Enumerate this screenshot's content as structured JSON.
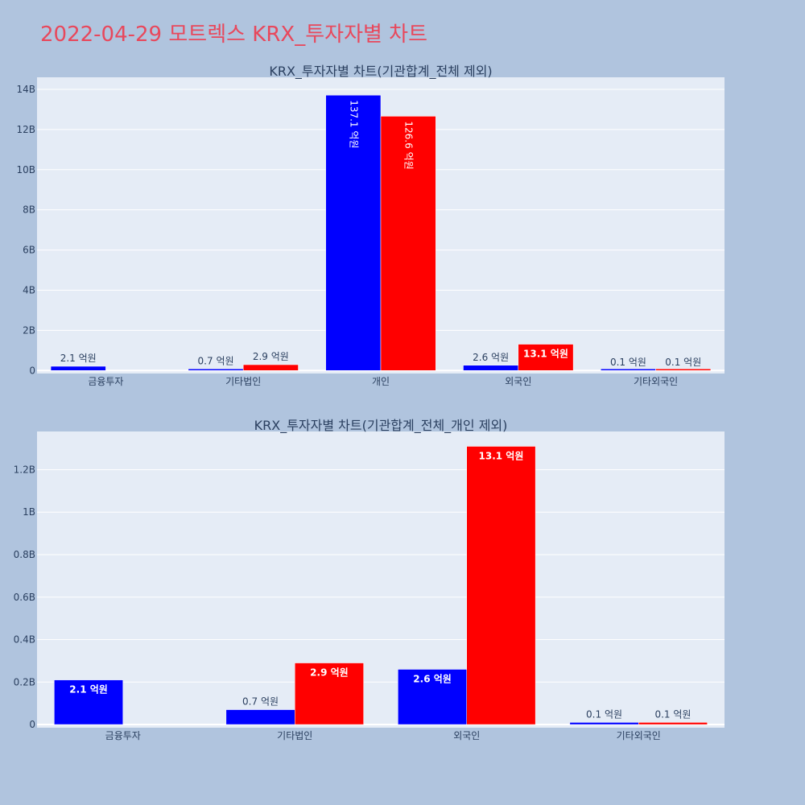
{
  "page": {
    "title": "2022-04-29 모트렉스 KRX_투자자별 차트"
  },
  "colors": {
    "background": "#b0c4de",
    "plot_bg": "#e5ecf6",
    "title": "#e8485c",
    "series1": "#0000ff",
    "series2": "#ff0000",
    "axis_text": "#2a3f5f"
  },
  "chart_data": [
    {
      "type": "bar",
      "title": "KRX_투자자별 차트(기관합계_전체 제외)",
      "categories": [
        "금융투자",
        "기타법인",
        "개인",
        "외국인",
        "기타외국인"
      ],
      "series": [
        {
          "values": [
            210000000,
            70000000,
            13710000000,
            260000000,
            10000000
          ],
          "labels": [
            "2.1 억원",
            "0.7 억원",
            "137.1 억원",
            "2.6 억원",
            "0.1 억원"
          ]
        },
        {
          "values": [
            0,
            290000000,
            12660000000,
            1310000000,
            10000000
          ],
          "labels": [
            "",
            "2.9 억원",
            "126.6 억원",
            "13.1 억원",
            "0.1 억원"
          ]
        }
      ],
      "ylim": [
        -150000000,
        14600000000
      ],
      "yticks": [
        0,
        2000000000,
        4000000000,
        6000000000,
        8000000000,
        10000000000,
        12000000000,
        14000000000
      ],
      "ytick_labels": [
        "0",
        "2B",
        "4B",
        "6B",
        "8B",
        "10B",
        "12B",
        "14B"
      ],
      "grid": true
    },
    {
      "type": "bar",
      "title": "KRX_투자자별 차트(기관합계_전체_개인 제외)",
      "categories": [
        "금융투자",
        "기타법인",
        "외국인",
        "기타외국인"
      ],
      "series": [
        {
          "values": [
            210000000,
            70000000,
            260000000,
            10000000
          ],
          "labels": [
            "2.1 억원",
            "0.7 억원",
            "2.6 억원",
            "0.1 억원"
          ]
        },
        {
          "values": [
            0,
            290000000,
            1310000000,
            10000000
          ],
          "labels": [
            "",
            "2.9 억원",
            "13.1 억원",
            "0.1 억원"
          ]
        }
      ],
      "ylim": [
        -15000000,
        1380000000
      ],
      "yticks": [
        0,
        200000000,
        400000000,
        600000000,
        800000000,
        1000000000,
        1200000000
      ],
      "ytick_labels": [
        "0",
        "0.2B",
        "0.4B",
        "0.6B",
        "0.8B",
        "1B",
        "1.2B"
      ],
      "grid": true
    }
  ]
}
